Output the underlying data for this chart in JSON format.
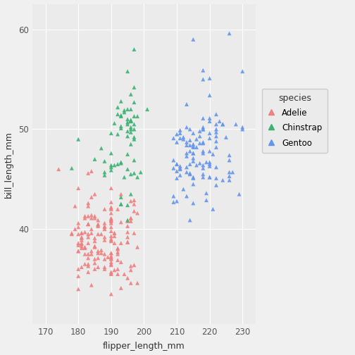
{
  "title": "",
  "xlabel": "flipper_length_mm",
  "ylabel": "bill_length_mm",
  "xlim": [
    166,
    234
  ],
  "ylim": [
    30.5,
    62.5
  ],
  "xticks": [
    170,
    180,
    190,
    200,
    210,
    220,
    230
  ],
  "yticks": [
    40,
    50,
    60
  ],
  "species_colors": {
    "Adelie": "#F08080",
    "Chinstrap": "#3CB371",
    "Gentoo": "#6495ED"
  },
  "marker": "^",
  "marker_size": 18,
  "alpha": 0.9,
  "background_color": "#EBEBEB",
  "panel_background": "#EBEBEB",
  "grid_color": "#FFFFFF",
  "legend_title": "species",
  "legend_bg": "#EBEBEB",
  "points": {
    "Adelie": [
      [
        181,
        39.1
      ],
      [
        186,
        39.5
      ],
      [
        195,
        40.3
      ],
      [
        193,
        36.7
      ],
      [
        190,
        39.3
      ],
      [
        181,
        38.9
      ],
      [
        195,
        39.2
      ],
      [
        193,
        34.1
      ],
      [
        190,
        42.0
      ],
      [
        186,
        37.8
      ],
      [
        180,
        37.8
      ],
      [
        182,
        41.1
      ],
      [
        191,
        38.6
      ],
      [
        198,
        34.6
      ],
      [
        185,
        36.6
      ],
      [
        195,
        38.7
      ],
      [
        197,
        42.5
      ],
      [
        184,
        34.4
      ],
      [
        174,
        46.0
      ],
      [
        180,
        37.8
      ],
      [
        192,
        37.7
      ],
      [
        191,
        35.9
      ],
      [
        198,
        38.2
      ],
      [
        185,
        38.8
      ],
      [
        180,
        35.3
      ],
      [
        180,
        40.6
      ],
      [
        183,
        40.5
      ],
      [
        187,
        37.9
      ],
      [
        183,
        40.5
      ],
      [
        180,
        39.5
      ],
      [
        189,
        37.2
      ],
      [
        187,
        39.5
      ],
      [
        190,
        40.9
      ],
      [
        190,
        36.4
      ],
      [
        188,
        39.2
      ],
      [
        190,
        38.8
      ],
      [
        190,
        42.2
      ],
      [
        187,
        37.6
      ],
      [
        190,
        39.8
      ],
      [
        190,
        36.5
      ],
      [
        196,
        40.8
      ],
      [
        188,
        36.0
      ],
      [
        190,
        44.1
      ],
      [
        188,
        37.0
      ],
      [
        178,
        39.6
      ],
      [
        184,
        41.1
      ],
      [
        183,
        37.5
      ],
      [
        180,
        36.0
      ],
      [
        179,
        42.3
      ],
      [
        181,
        39.6
      ],
      [
        183,
        36.5
      ],
      [
        186,
        37.6
      ],
      [
        183,
        35.7
      ],
      [
        182,
        41.3
      ],
      [
        190,
        37.6
      ],
      [
        185,
        41.1
      ],
      [
        197,
        36.4
      ],
      [
        198,
        41.6
      ],
      [
        190,
        35.5
      ],
      [
        190,
        41.1
      ],
      [
        196,
        35.9
      ],
      [
        197,
        41.8
      ],
      [
        190,
        33.5
      ],
      [
        195,
        39.7
      ],
      [
        197,
        39.6
      ],
      [
        184,
        45.8
      ],
      [
        192,
        35.5
      ],
      [
        196,
        42.8
      ],
      [
        190,
        40.9
      ],
      [
        190,
        37.2
      ],
      [
        186,
        36.2
      ],
      [
        190,
        42.1
      ],
      [
        196,
        34.6
      ],
      [
        197,
        42.9
      ],
      [
        190,
        36.7
      ],
      [
        195,
        35.1
      ],
      [
        190,
        37.3
      ],
      [
        185,
        41.3
      ],
      [
        183,
        36.3
      ],
      [
        192,
        36.9
      ],
      [
        185,
        38.3
      ],
      [
        190,
        38.9
      ],
      [
        190,
        35.7
      ],
      [
        196,
        41.1
      ],
      [
        180,
        34.0
      ],
      [
        181,
        39.6
      ],
      [
        188,
        36.2
      ],
      [
        190,
        40.8
      ],
      [
        181,
        38.1
      ],
      [
        184,
        43.2
      ],
      [
        182,
        38.1
      ],
      [
        183,
        45.6
      ],
      [
        182,
        39.7
      ],
      [
        183,
        42.6
      ],
      [
        193,
        43.5
      ],
      [
        183,
        38.6
      ],
      [
        184,
        37.5
      ],
      [
        192,
        38.1
      ],
      [
        196,
        41.1
      ],
      [
        190,
        40.6
      ],
      [
        188,
        40.0
      ],
      [
        191,
        39.6
      ],
      [
        188,
        42.0
      ],
      [
        190,
        41.0
      ],
      [
        178,
        39.5
      ],
      [
        185,
        43.5
      ],
      [
        183,
        37.1
      ],
      [
        180,
        44.1
      ],
      [
        181,
        38.5
      ],
      [
        188,
        38.9
      ],
      [
        180,
        40.2
      ],
      [
        185,
        37.0
      ],
      [
        183,
        42.3
      ],
      [
        180,
        38.6
      ],
      [
        182,
        36.5
      ],
      [
        181,
        38.3
      ],
      [
        184,
        41.4
      ],
      [
        183,
        39.5
      ],
      [
        192,
        37.5
      ],
      [
        195,
        40.8
      ],
      [
        188,
        40.2
      ],
      [
        190,
        40.2
      ],
      [
        190,
        37.1
      ],
      [
        193,
        40.7
      ],
      [
        194,
        35.5
      ],
      [
        185,
        38.2
      ],
      [
        183,
        41.3
      ],
      [
        186,
        40.4
      ],
      [
        186,
        40.9
      ],
      [
        184,
        39.6
      ],
      [
        190,
        35.6
      ],
      [
        188,
        40.6
      ],
      [
        188,
        37.5
      ],
      [
        190,
        39.0
      ],
      [
        193,
        38.6
      ],
      [
        196,
        36.3
      ],
      [
        190,
        42.7
      ],
      [
        192,
        36.0
      ],
      [
        184,
        37.8
      ],
      [
        190,
        37.0
      ],
      [
        190,
        37.6
      ],
      [
        186,
        37.1
      ],
      [
        185,
        39.1
      ],
      [
        179,
        40.0
      ],
      [
        181,
        39.2
      ],
      [
        184,
        40.0
      ],
      [
        191,
        39.6
      ],
      [
        181,
        38.6
      ],
      [
        188,
        40.3
      ],
      [
        192,
        42.0
      ],
      [
        186,
        40.5
      ],
      [
        191,
        39.3
      ],
      [
        180,
        38.4
      ],
      [
        181,
        36.2
      ],
      [
        192,
        38.0
      ],
      [
        185,
        36.0
      ],
      [
        183,
        40.5
      ],
      [
        186,
        40.3
      ],
      [
        190,
        41.6
      ],
      [
        183,
        39.2
      ],
      [
        195,
        38.7
      ],
      [
        182,
        37.5
      ],
      [
        182,
        38.2
      ]
    ],
    "Chinstrap": [
      [
        192,
        46.5
      ],
      [
        196,
        50.0
      ],
      [
        193,
        51.3
      ],
      [
        188,
        45.4
      ],
      [
        197,
        52.7
      ],
      [
        198,
        45.2
      ],
      [
        178,
        46.1
      ],
      [
        197,
        51.3
      ],
      [
        195,
        46.0
      ],
      [
        198,
        51.3
      ],
      [
        193,
        46.6
      ],
      [
        194,
        51.7
      ],
      [
        185,
        47.0
      ],
      [
        201,
        52.0
      ],
      [
        190,
        45.9
      ],
      [
        197,
        50.5
      ],
      [
        193,
        50.3
      ],
      [
        197,
        58.0
      ],
      [
        190,
        46.4
      ],
      [
        197,
        49.2
      ],
      [
        195,
        42.4
      ],
      [
        196,
        48.5
      ],
      [
        193,
        43.2
      ],
      [
        191,
        50.6
      ],
      [
        193,
        46.7
      ],
      [
        195,
        52.0
      ],
      [
        195,
        50.5
      ],
      [
        192,
        49.5
      ],
      [
        191,
        46.4
      ],
      [
        193,
        52.8
      ],
      [
        195,
        40.9
      ],
      [
        197,
        54.2
      ],
      [
        193,
        42.5
      ],
      [
        195,
        51.0
      ],
      [
        196,
        49.7
      ],
      [
        195,
        47.5
      ],
      [
        190,
        47.6
      ],
      [
        196,
        52.0
      ],
      [
        197,
        46.9
      ],
      [
        196,
        53.5
      ],
      [
        197,
        49.0
      ],
      [
        190,
        46.2
      ],
      [
        196,
        50.9
      ],
      [
        196,
        45.5
      ],
      [
        196,
        50.9
      ],
      [
        196,
        50.8
      ],
      [
        193,
        50.1
      ],
      [
        180,
        49.0
      ],
      [
        192,
        51.5
      ],
      [
        195,
        49.8
      ],
      [
        187,
        48.1
      ],
      [
        193,
        51.4
      ],
      [
        188,
        45.7
      ],
      [
        195,
        50.7
      ],
      [
        193,
        42.5
      ],
      [
        192,
        52.2
      ],
      [
        194,
        45.2
      ],
      [
        195,
        49.3
      ],
      [
        196,
        50.2
      ],
      [
        197,
        45.6
      ],
      [
        194,
        51.9
      ],
      [
        188,
        46.8
      ],
      [
        199,
        45.7
      ],
      [
        195,
        55.8
      ],
      [
        196,
        43.5
      ],
      [
        190,
        49.6
      ],
      [
        196,
        50.8
      ],
      [
        197,
        50.0
      ]
    ],
    "Gentoo": [
      [
        211,
        46.1
      ],
      [
        230,
        50.0
      ],
      [
        210,
        48.7
      ],
      [
        218,
        50.0
      ],
      [
        215,
        47.6
      ],
      [
        210,
        46.5
      ],
      [
        211,
        45.4
      ],
      [
        219,
        46.7
      ],
      [
        209,
        43.3
      ],
      [
        215,
        46.8
      ],
      [
        214,
        40.9
      ],
      [
        216,
        49.0
      ],
      [
        214,
        45.5
      ],
      [
        213,
        48.4
      ],
      [
        210,
        45.8
      ],
      [
        217,
        49.3
      ],
      [
        221,
        42.0
      ],
      [
        212,
        49.2
      ],
      [
        213,
        46.2
      ],
      [
        218,
        48.7
      ],
      [
        218,
        50.2
      ],
      [
        215,
        45.1
      ],
      [
        210,
        46.5
      ],
      [
        211,
        46.3
      ],
      [
        219,
        42.9
      ],
      [
        209,
        46.1
      ],
      [
        215,
        44.5
      ],
      [
        214,
        47.8
      ],
      [
        216,
        48.2
      ],
      [
        214,
        50.0
      ],
      [
        213,
        47.3
      ],
      [
        210,
        42.8
      ],
      [
        210,
        45.1
      ],
      [
        226,
        59.6
      ],
      [
        211,
        49.1
      ],
      [
        214,
        48.4
      ],
      [
        215,
        42.6
      ],
      [
        222,
        44.4
      ],
      [
        212,
        44.0
      ],
      [
        213,
        48.7
      ],
      [
        209,
        42.7
      ],
      [
        211,
        49.6
      ],
      [
        226,
        45.3
      ],
      [
        215,
        49.6
      ],
      [
        222,
        50.5
      ],
      [
        219,
        43.6
      ],
      [
        218,
        45.5
      ],
      [
        224,
        50.5
      ],
      [
        226,
        44.9
      ],
      [
        220,
        45.2
      ],
      [
        217,
        46.6
      ],
      [
        215,
        48.5
      ],
      [
        222,
        45.1
      ],
      [
        218,
        45.2
      ],
      [
        217,
        49.8
      ],
      [
        218,
        46.1
      ],
      [
        209,
        46.9
      ],
      [
        213,
        45.7
      ],
      [
        218,
        47.6
      ],
      [
        215,
        59.0
      ],
      [
        214,
        45.6
      ],
      [
        218,
        55.9
      ],
      [
        218,
        47.8
      ],
      [
        220,
        53.4
      ],
      [
        220,
        55.1
      ],
      [
        209,
        49.1
      ],
      [
        227,
        45.7
      ],
      [
        210,
        49.5
      ],
      [
        220,
        51.1
      ],
      [
        222,
        48.8
      ],
      [
        218,
        50.0
      ],
      [
        215,
        47.6
      ],
      [
        211,
        46.0
      ],
      [
        218,
        46.4
      ],
      [
        215,
        48.2
      ],
      [
        214,
        46.5
      ],
      [
        216,
        46.4
      ],
      [
        217,
        48.6
      ],
      [
        221,
        47.5
      ],
      [
        218,
        51.1
      ],
      [
        220,
        45.2
      ],
      [
        215,
        45.2
      ],
      [
        220,
        49.1
      ],
      [
        213,
        52.5
      ],
      [
        226,
        47.4
      ],
      [
        222,
        50.0
      ],
      [
        224,
        44.9
      ],
      [
        220,
        50.8
      ],
      [
        213,
        43.3
      ],
      [
        213,
        50.2
      ],
      [
        212,
        49.0
      ],
      [
        214,
        48.9
      ],
      [
        215,
        48.3
      ],
      [
        222,
        46.2
      ],
      [
        211,
        49.9
      ],
      [
        218,
        48.6
      ],
      [
        213,
        47.6
      ],
      [
        220,
        46.3
      ],
      [
        220,
        46.7
      ],
      [
        215,
        47.1
      ],
      [
        222,
        49.7
      ],
      [
        225,
        49.2
      ],
      [
        222,
        51.5
      ],
      [
        222,
        49.3
      ],
      [
        220,
        46.5
      ],
      [
        228,
        50.5
      ],
      [
        224,
        50.5
      ],
      [
        220,
        47.8
      ],
      [
        218,
        55.0
      ],
      [
        226,
        46.9
      ],
      [
        222,
        48.2
      ],
      [
        226,
        45.7
      ],
      [
        230,
        55.8
      ],
      [
        229,
        43.5
      ],
      [
        220,
        49.6
      ],
      [
        223,
        50.8
      ],
      [
        230,
        50.2
      ]
    ]
  }
}
